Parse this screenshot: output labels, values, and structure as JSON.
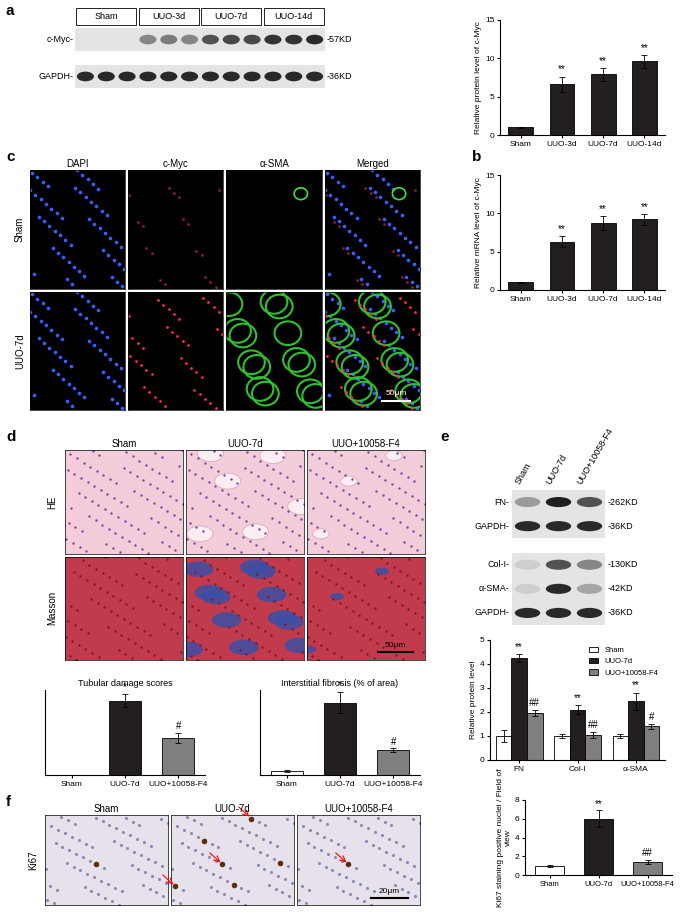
{
  "panel_labels": [
    "a",
    "b",
    "c",
    "d",
    "e",
    "f"
  ],
  "blots": [
    {
      "lane_groups": [
        {
          "label": "Sham",
          "lanes": 3
        },
        {
          "label": "UUO-3d",
          "lanes": 3
        },
        {
          "label": "UUO-7d",
          "lanes": 3
        },
        {
          "label": "UUO-14d",
          "lanes": 3
        }
      ],
      "membranes": [
        [
          {
            "label": "c-Myc-",
            "size": "-57KD",
            "levels": [
              0,
              0,
              0,
              0.45,
              0.5,
              0.45,
              0.7,
              0.75,
              0.75,
              0.85,
              0.85,
              0.9
            ]
          }
        ],
        [
          {
            "label": "GAPDH-",
            "size": "-36KD",
            "levels": [
              0.9,
              0.9,
              0.9,
              0.9,
              0.9,
              0.9,
              0.9,
              0.9,
              0.9,
              0.9,
              0.9,
              0.9
            ]
          }
        ]
      ]
    },
    {
      "lane_groups": [
        {
          "label": "Sham",
          "lanes": 1
        },
        {
          "label": "UUO-7d",
          "lanes": 1
        },
        {
          "label": "UUO+10058-F4",
          "lanes": 1
        }
      ],
      "membranes": [
        [
          {
            "label": "FN-",
            "size": "-262KD",
            "levels": [
              0.35,
              0.95,
              0.7
            ]
          },
          {
            "label": "GAPDH-",
            "size": "-36KD",
            "levels": [
              0.9,
              0.9,
              0.9
            ]
          }
        ],
        [
          {
            "label": "Col-I-",
            "size": "-130KD",
            "levels": [
              0.1,
              0.7,
              0.45
            ]
          },
          {
            "label": "α-SMA-",
            "size": "-42KD",
            "levels": [
              0.1,
              0.9,
              0.3
            ]
          },
          {
            "label": "GAPDH-",
            "size": "-36KD",
            "levels": [
              0.9,
              0.9,
              0.9
            ]
          }
        ]
      ]
    }
  ],
  "micrographs": [
    {
      "columns": [
        "DAPI",
        "c-Myc",
        "α-SMA",
        "Merged"
      ],
      "rows": [
        "Sham",
        "UUO-7d"
      ],
      "scale_bar": "50μm"
    },
    {
      "columns": [
        "Sham",
        "UUO-7d",
        "UUO+10058-F4"
      ],
      "rows": [
        "HE",
        "Masson"
      ],
      "scale_bar": "50μm"
    },
    {
      "columns": [
        "Sham",
        "UUO-7d",
        "UUO+10058-F4"
      ],
      "rows": [
        "Ki67"
      ],
      "scale_bar": "20μm"
    }
  ],
  "chart_data": [
    {
      "type": "bar",
      "y_label": "Relative protein level of c-Myc",
      "categories": [
        "Sham",
        "UUO-3d",
        "UUO-7d",
        "UUO-14d"
      ],
      "values": [
        1.0,
        6.6,
        7.9,
        9.6
      ],
      "errors": [
        0.1,
        1.0,
        0.8,
        0.8
      ],
      "annotations": [
        null,
        "**",
        "**",
        "**"
      ],
      "color": "#231f20",
      "ylim": [
        0,
        15
      ],
      "yticks": [
        0,
        5,
        10,
        15
      ]
    },
    {
      "type": "bar",
      "y_label": "Relative mRNA level of c-Myc",
      "categories": [
        "Sham",
        "UUO-3d",
        "UUO-7d",
        "UUO-14d"
      ],
      "values": [
        1.0,
        6.3,
        8.7,
        9.2
      ],
      "errors": [
        0.1,
        0.7,
        0.9,
        0.7
      ],
      "annotations": [
        null,
        "**",
        "**",
        "**"
      ],
      "color": "#231f20",
      "ylim": [
        0,
        15
      ],
      "yticks": [
        0,
        5,
        10,
        15
      ]
    },
    {
      "type": "bar",
      "title": "Tubular damage scores",
      "categories": [
        "Sham",
        "UUO-7d",
        "UUO+10058-F4"
      ],
      "values": [
        0,
        3.5,
        1.75
      ],
      "errors": [
        0,
        0.3,
        0.25
      ],
      "annotations": [
        null,
        "*",
        "#"
      ],
      "colors": [
        "#ffffff",
        "#231f20",
        "#7f7f7f"
      ],
      "ylim": [
        0,
        4
      ],
      "tick_labels": "x"
    },
    {
      "type": "bar",
      "title": "Interstitial fibrosis (% of area)",
      "categories": [
        "Sham",
        "UUO-7d",
        "UUO+10058-F4"
      ],
      "values": [
        1.0,
        17.0,
        5.8
      ],
      "errors": [
        0.2,
        2.5,
        0.5
      ],
      "annotations": [
        null,
        "*",
        "#"
      ],
      "colors": [
        "#ffffff",
        "#231f20",
        "#7f7f7f"
      ],
      "ylim": [
        0,
        20
      ],
      "tick_labels": "x"
    },
    {
      "type": "bar",
      "y_label": "Relative protein level",
      "categories": [
        "FN",
        "Col-I",
        "α-SMA"
      ],
      "series": [
        {
          "name": "Sham",
          "color": "#ffffff",
          "values": [
            1.0,
            1.0,
            1.0
          ],
          "errors": [
            0.25,
            0.1,
            0.08
          ],
          "annotations": [
            null,
            null,
            null
          ]
        },
        {
          "name": "UUO-7d",
          "color": "#231f20",
          "values": [
            4.25,
            2.1,
            2.45
          ],
          "errors": [
            0.15,
            0.18,
            0.35
          ],
          "annotations": [
            "**",
            "**",
            "**"
          ]
        },
        {
          "name": "UUO+10058-F4",
          "color": "#7f7f7f",
          "values": [
            1.95,
            1.05,
            1.4
          ],
          "errors": [
            0.12,
            0.12,
            0.1
          ],
          "annotations": [
            "##",
            "##",
            "#"
          ]
        }
      ],
      "legend": "upper right",
      "ylim": [
        0,
        5
      ],
      "yticks": [
        0,
        1,
        2,
        3,
        4,
        5
      ]
    },
    {
      "type": "bar",
      "y_label": "Ki67 staining positive nuclei / Field of view",
      "categories": [
        "Sham",
        "UUO-7d",
        "UUO+10058-F4"
      ],
      "values": [
        1.0,
        6.0,
        1.4
      ],
      "errors": [
        0.1,
        0.9,
        0.2
      ],
      "annotations": [
        null,
        "**",
        "##"
      ],
      "colors": [
        "#ffffff",
        "#231f20",
        "#7f7f7f"
      ],
      "ylim": [
        0,
        8
      ],
      "yticks": [
        0,
        2,
        4,
        6,
        8
      ]
    }
  ]
}
